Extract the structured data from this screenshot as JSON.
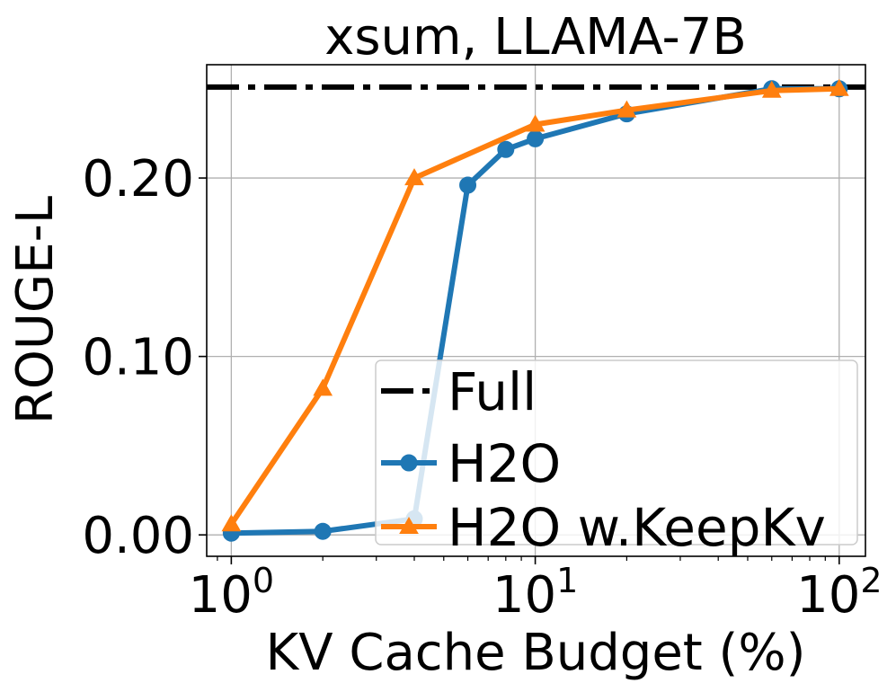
{
  "chart_data": {
    "type": "line",
    "title": "xsum, LLAMA-7B",
    "xlabel": "KV Cache Budget (%)",
    "ylabel": "ROUGE-L",
    "xscale": "log",
    "xlim": [
      0.83,
      122
    ],
    "ylim": [
      -0.012,
      0.2635
    ],
    "grid": true,
    "legend_position": "lower-right",
    "xticks": [
      {
        "value": 1,
        "base": "10",
        "exp": "0"
      },
      {
        "value": 10,
        "base": "10",
        "exp": "1"
      },
      {
        "value": 100,
        "base": "10",
        "exp": "2"
      }
    ],
    "yticks": [
      {
        "value": 0.0,
        "label": "0.00"
      },
      {
        "value": 0.1,
        "label": "0.10"
      },
      {
        "value": 0.2,
        "label": "0.20"
      }
    ],
    "series": [
      {
        "name": "Full",
        "style": "dashdot",
        "color": "#000000",
        "marker": "none",
        "x": [
          0.83,
          122
        ],
        "y": [
          0.251,
          0.251
        ]
      },
      {
        "name": "H2O",
        "style": "solid",
        "color": "#1f77b4",
        "marker": "circle",
        "x": [
          1,
          2,
          4,
          6,
          8,
          10,
          20,
          60,
          100
        ],
        "y": [
          0.001,
          0.002,
          0.009,
          0.196,
          0.216,
          0.222,
          0.236,
          0.25,
          0.25
        ]
      },
      {
        "name": "H2O w.KeepKv",
        "style": "solid",
        "color": "#ff7f0e",
        "marker": "triangle",
        "x": [
          1,
          2,
          4,
          10,
          20,
          60,
          100
        ],
        "y": [
          0.006,
          0.082,
          0.2,
          0.23,
          0.238,
          0.249,
          0.25
        ]
      }
    ]
  }
}
